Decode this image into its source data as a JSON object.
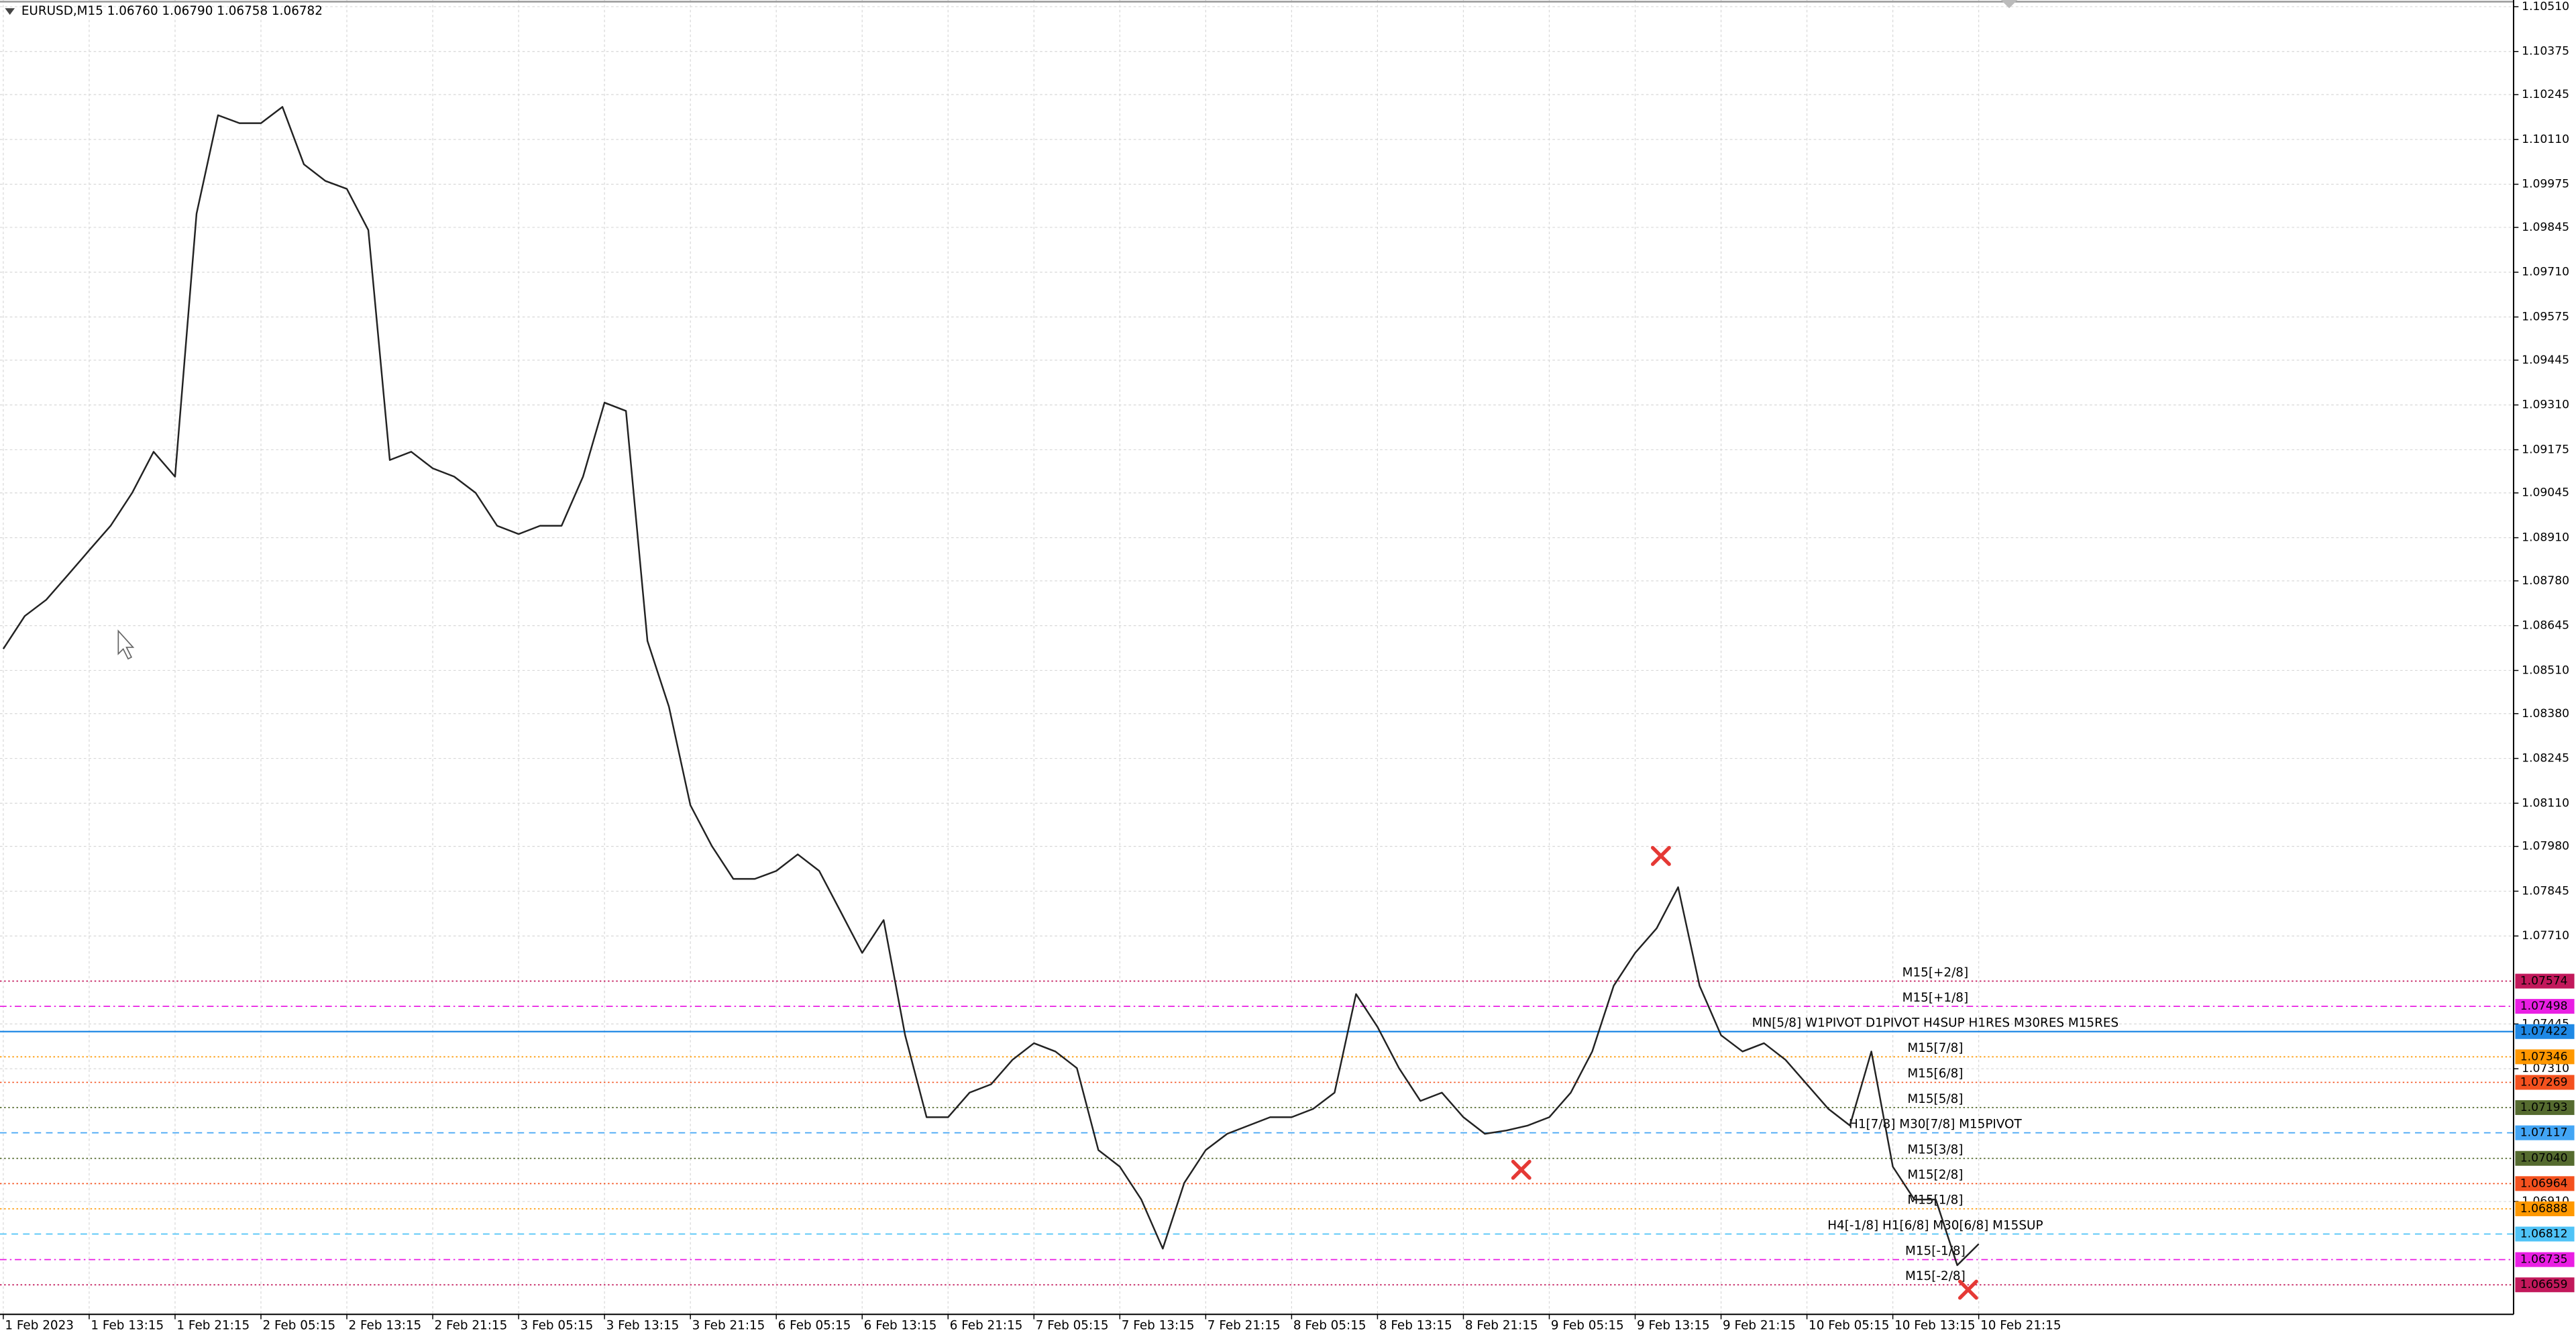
{
  "chart_data": {
    "type": "line",
    "title": "EURUSD,M15  1.06760 1.06790 1.06758 1.06782",
    "categories": [
      "1 Feb 2023",
      null,
      null,
      null,
      "1 Feb 13:15",
      null,
      null,
      null,
      "1 Feb 21:15",
      null,
      null,
      null,
      "2 Feb 05:15",
      null,
      null,
      null,
      "2 Feb 13:15",
      null,
      null,
      null,
      "2 Feb 21:15",
      null,
      null,
      null,
      "3 Feb 05:15",
      null,
      null,
      null,
      "3 Feb 13:15",
      null,
      null,
      null,
      "3 Feb 21:15",
      null,
      null,
      null,
      "6 Feb 05:15",
      null,
      null,
      null,
      "6 Feb 13:15",
      null,
      null,
      null,
      "6 Feb 21:15",
      null,
      null,
      null,
      "7 Feb 05:15",
      null,
      null,
      null,
      "7 Feb 13:15",
      null,
      null,
      null,
      "7 Feb 21:15",
      null,
      null,
      null,
      "8 Feb 05:15",
      null,
      null,
      null,
      "8 Feb 13:15",
      null,
      null,
      null,
      "8 Feb 21:15",
      null,
      null,
      null,
      "9 Feb 05:15",
      null,
      null,
      null,
      "9 Feb 13:15",
      null,
      null,
      null,
      "9 Feb 21:15",
      null,
      null,
      null,
      "10 Feb 05:15",
      null,
      null,
      null,
      "10 Feb 13:15",
      null,
      null,
      null,
      "10 Feb 21:15"
    ],
    "series": [
      {
        "name": "EURUSD",
        "color": "#222222",
        "values": [
          1.08575,
          1.08674,
          1.08723,
          1.08797,
          1.08872,
          1.08946,
          1.09045,
          1.09169,
          1.09094,
          1.09886,
          1.10183,
          1.10159,
          1.10159,
          1.10208,
          1.10035,
          1.09985,
          1.09961,
          1.09837,
          1.09144,
          1.09169,
          1.09119,
          1.09094,
          1.09045,
          1.08946,
          1.08921,
          1.08946,
          1.08946,
          1.09094,
          1.09317,
          1.09292,
          1.08599,
          1.08401,
          1.08104,
          1.07981,
          1.07882,
          1.07882,
          1.07906,
          1.07956,
          1.07906,
          1.07783,
          1.07659,
          1.07758,
          1.07411,
          1.07164,
          1.07164,
          1.07238,
          1.07263,
          1.07337,
          1.07387,
          1.07362,
          1.07312,
          1.07065,
          1.07015,
          1.06916,
          1.06768,
          1.06966,
          1.07065,
          1.07114,
          1.07139,
          1.07164,
          1.07164,
          1.07189,
          1.07238,
          1.07535,
          1.07436,
          1.07312,
          1.07213,
          1.07238,
          1.07164,
          1.07114,
          1.07124,
          1.07139,
          1.07164,
          1.07238,
          1.07362,
          1.0756,
          1.07659,
          1.07733,
          1.07857,
          1.0756,
          1.07411,
          1.07362,
          1.07387,
          1.07337,
          1.07263,
          1.07189,
          1.07139,
          1.07362,
          1.07015,
          1.06916,
          1.06916,
          1.06718,
          1.06782
        ]
      }
    ],
    "ylim": [
      1.0658,
      1.1053
    ],
    "yticks": [
      {
        "value": 1.1051,
        "label": "1.10510"
      },
      1.10375,
      1.10245,
      {
        "value": 1.1011,
        "label": "1.10110"
      },
      1.09975,
      1.09845,
      {
        "value": 1.0971,
        "label": "1.09710"
      },
      1.09575,
      1.09445,
      {
        "value": 1.0931,
        "label": "1.09310"
      },
      1.09175,
      1.09045,
      {
        "value": 1.0891,
        "label": "1.08910"
      },
      {
        "value": 1.0878,
        "label": "1.08780"
      },
      1.08645,
      {
        "value": 1.0851,
        "label": "1.08510"
      },
      {
        "value": 1.0838,
        "label": "1.08380"
      },
      1.08245,
      {
        "value": 1.0811,
        "label": "1.08110"
      },
      {
        "value": 1.0798,
        "label": "1.07980"
      },
      1.07845,
      {
        "value": 1.0771,
        "label": "1.07710"
      },
      1.07445,
      {
        "value": 1.0731,
        "label": "1.07310"
      },
      {
        "value": 1.0691,
        "label": "1.06910"
      }
    ],
    "grid": true,
    "levels": [
      {
        "name": "M15[+2/8]",
        "value": 1.07574,
        "color": "#c2185b",
        "style": "dotted"
      },
      {
        "name": "M15[+1/8]",
        "value": 1.07498,
        "color": "#e91ee3",
        "style": "dashdot"
      },
      {
        "name": "MN[5/8] W1PIVOT D1PIVOT H4SUP H1RES M30RES M15RES",
        "value": 1.07422,
        "color": "#1e88e5",
        "style": "solid"
      },
      {
        "name": "M15[7/8]",
        "value": 1.07346,
        "color": "#ff9800",
        "style": "dotted"
      },
      {
        "name": "M15[6/8]",
        "value": 1.07269,
        "color": "#f4511e",
        "style": "dotted"
      },
      {
        "name": "M15[5/8]",
        "value": 1.07193,
        "color": "#556b2f",
        "style": "dotted"
      },
      {
        "name": "H1[7/8] M30[7/8] M15PIVOT",
        "value": 1.07117,
        "color": "#42a5f5",
        "style": "dashed"
      },
      {
        "name": "M15[3/8]",
        "value": 1.0704,
        "value_label": "1.07040",
        "color": "#556b2f",
        "style": "dotted"
      },
      {
        "name": "M15[2/8]",
        "value": 1.06964,
        "color": "#f4511e",
        "style": "dotted"
      },
      {
        "name": "M15[1/8]",
        "value": 1.06888,
        "color": "#ff9800",
        "style": "dotted"
      },
      {
        "name": "H4[-1/8] H1[6/8] M30[6/8] M15SUP",
        "value": 1.06812,
        "color": "#4fc3f7",
        "style": "dashed"
      },
      {
        "name": "M15[-1/8]",
        "value": 1.06735,
        "color": "#e91ee3",
        "style": "dashdot"
      },
      {
        "name": "M15[-2/8]",
        "value": 1.06659,
        "color": "#c2185b",
        "style": "dotted"
      }
    ]
  }
}
